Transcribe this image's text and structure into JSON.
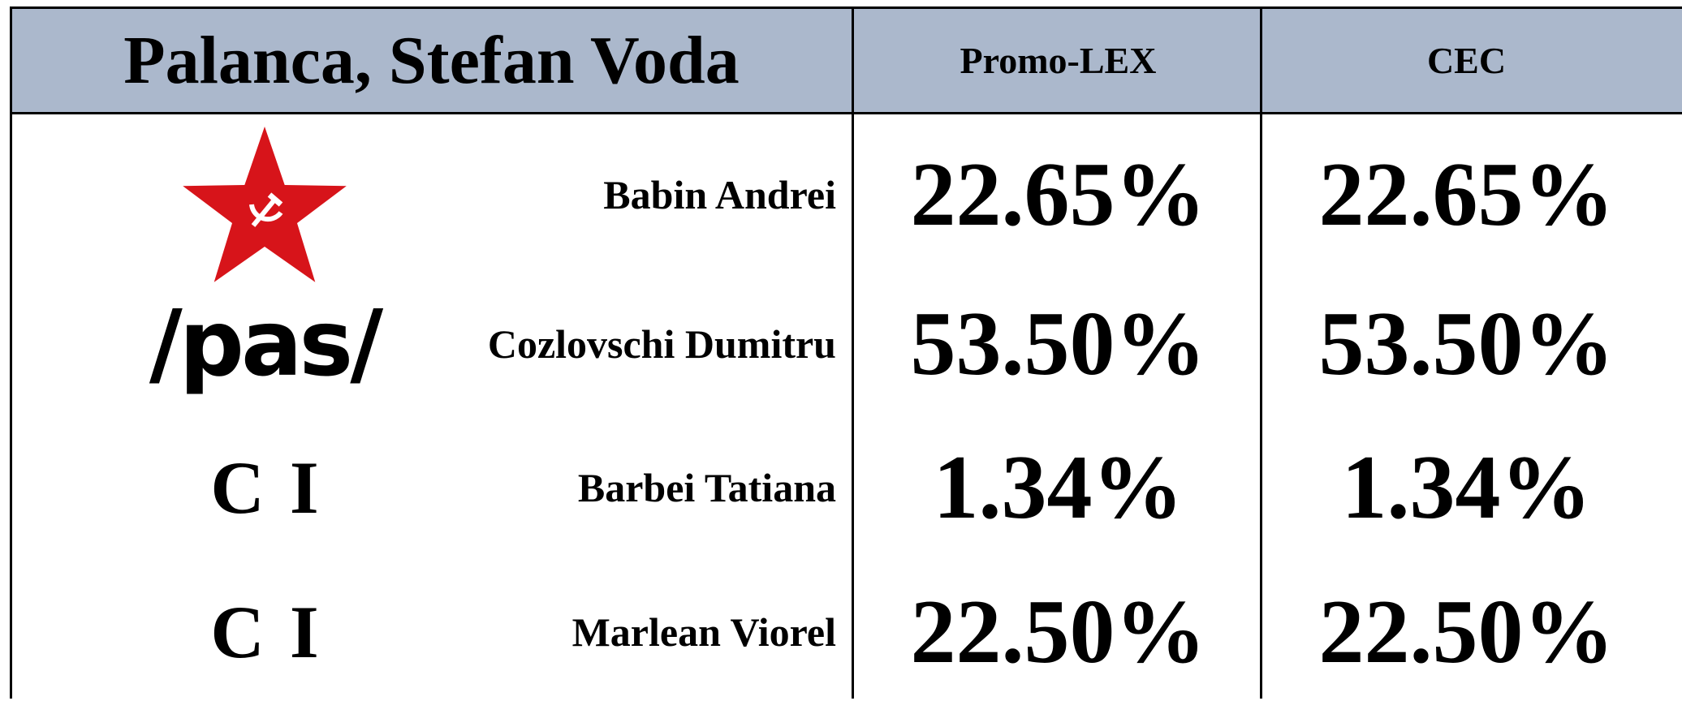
{
  "header": {
    "title": "Palanca, Stefan Voda",
    "columns": [
      "Promo-LEX",
      "CEC"
    ]
  },
  "table": {
    "rows": [
      {
        "candidate": "Babin Andrei",
        "promo_lex": "22.65%",
        "cec": "22.65%"
      },
      {
        "logo": "/pas/",
        "candidate": "Cozlovschi Dumitru",
        "promo_lex": "53.50%",
        "cec": "53.50%"
      },
      {
        "logo": "C I",
        "candidate": "Barbei Tatiana",
        "promo_lex": "1.34%",
        "cec": "1.34%"
      },
      {
        "logo": "C I",
        "candidate": "Marlean Viorel",
        "promo_lex": "22.50%",
        "cec": "22.50%"
      }
    ]
  }
}
